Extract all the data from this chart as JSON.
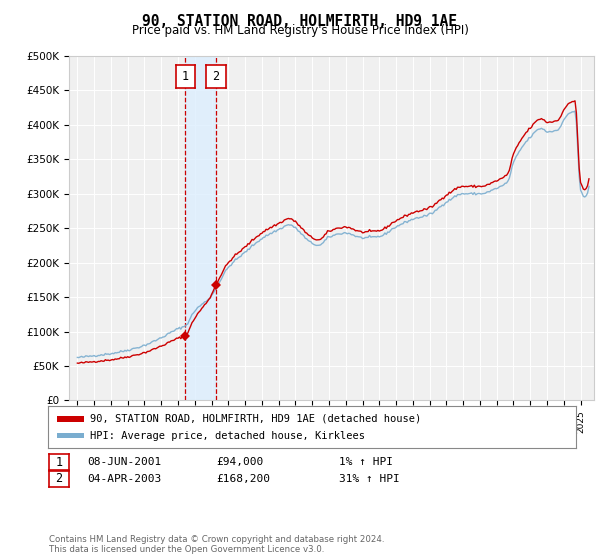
{
  "title": "90, STATION ROAD, HOLMFIRTH, HD9 1AE",
  "subtitle": "Price paid vs. HM Land Registry's House Price Index (HPI)",
  "legend_line1": "90, STATION ROAD, HOLMFIRTH, HD9 1AE (detached house)",
  "legend_line2": "HPI: Average price, detached house, Kirklees",
  "transaction1_date": "08-JUN-2001",
  "transaction1_price": 94000,
  "transaction1_label": "1% ↑ HPI",
  "transaction2_date": "04-APR-2003",
  "transaction2_price": 168200,
  "transaction2_label": "31% ↑ HPI",
  "footer": "Contains HM Land Registry data © Crown copyright and database right 2024.\nThis data is licensed under the Open Government Licence v3.0.",
  "ylim": [
    0,
    500000
  ],
  "yticks": [
    0,
    50000,
    100000,
    150000,
    200000,
    250000,
    300000,
    350000,
    400000,
    450000,
    500000
  ],
  "color_property": "#cc0000",
  "color_hpi": "#7aadcf",
  "color_vline": "#cc0000",
  "color_shade": "#ddeeff",
  "background_color": "#f0f0f0",
  "trans1_x": 2001.44,
  "trans2_x": 2003.27,
  "xmin": 1994.5,
  "xmax": 2025.8
}
